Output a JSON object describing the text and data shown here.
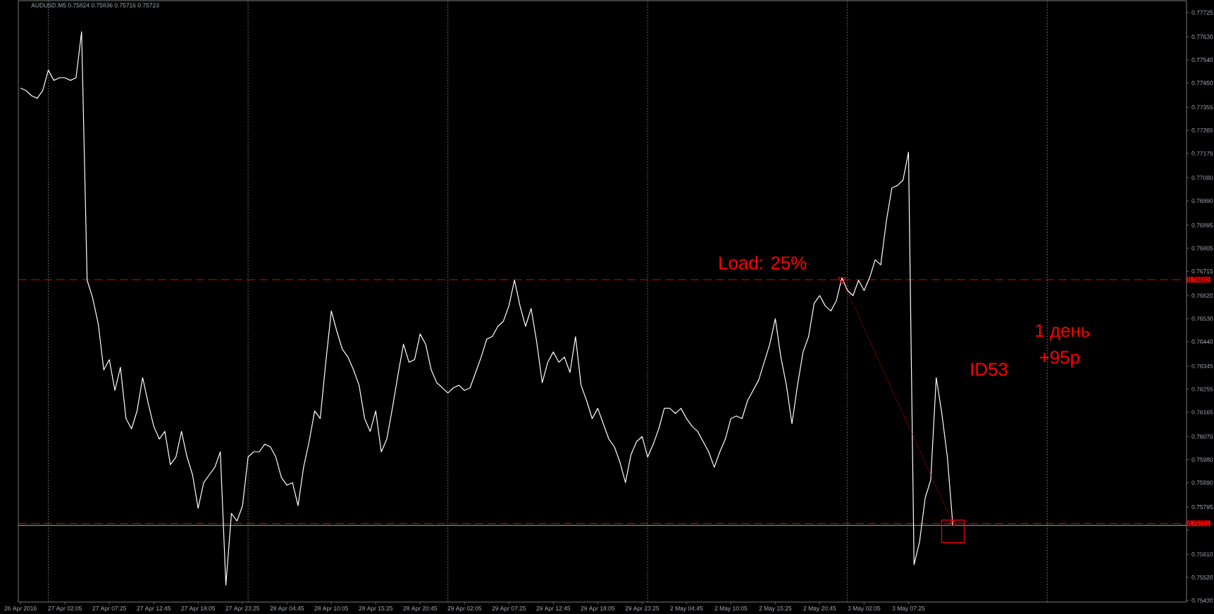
{
  "chart_data": {
    "type": "line",
    "title": "AUDUSD,M5 0.75824 0.75836 0.75716 0.75723",
    "annotations": [
      "Load: 25%",
      "ID53",
      "1 день",
      "+95p"
    ],
    "categories": [
      "26 Apr 2016",
      null,
      null,
      null,
      null,
      null,
      null,
      null,
      "27 Apr 02:05",
      null,
      null,
      null,
      null,
      null,
      null,
      null,
      "27 Apr 07:25",
      null,
      null,
      null,
      null,
      null,
      null,
      null,
      "27 Apr 12:45",
      null,
      null,
      null,
      null,
      null,
      null,
      null,
      "27 Apr 18:05",
      null,
      null,
      null,
      null,
      null,
      null,
      null,
      "27 Apr 23:25",
      null,
      null,
      null,
      null,
      null,
      null,
      null,
      "28 Apr 04:45",
      null,
      null,
      null,
      null,
      null,
      null,
      null,
      "28 Apr 10:05",
      null,
      null,
      null,
      null,
      null,
      null,
      null,
      "28 Apr 15:25",
      null,
      null,
      null,
      null,
      null,
      null,
      null,
      "28 Apr 20:45",
      null,
      null,
      null,
      null,
      null,
      null,
      null,
      "29 Apr 02:05",
      null,
      null,
      null,
      null,
      null,
      null,
      null,
      "29 Apr 07:25",
      null,
      null,
      null,
      null,
      null,
      null,
      null,
      "29 Apr 12:45",
      null,
      null,
      null,
      null,
      null,
      null,
      null,
      "29 Apr 18:05",
      null,
      null,
      null,
      null,
      null,
      null,
      null,
      "29 Apr 23:25",
      null,
      null,
      null,
      null,
      null,
      null,
      null,
      "2 May 04:45",
      null,
      null,
      null,
      null,
      null,
      null,
      null,
      "2 May 10:05",
      null,
      null,
      null,
      null,
      null,
      null,
      null,
      "2 May 15:25",
      null,
      null,
      null,
      null,
      null,
      null,
      null,
      "2 May 20:45",
      null,
      null,
      null,
      null,
      null,
      null,
      null,
      "3 May 02:05",
      null,
      null,
      null,
      null,
      null,
      null,
      null,
      "3 May 07:25",
      null,
      null,
      null,
      null,
      null,
      null,
      null,
      null,
      null,
      null,
      null,
      null,
      null,
      null,
      null,
      null,
      null,
      null,
      null,
      null,
      null,
      null,
      null,
      null,
      null,
      null,
      null,
      null,
      null,
      null,
      null,
      null,
      null,
      null,
      null,
      null,
      null,
      null,
      null,
      null,
      null,
      null,
      null,
      null,
      null,
      null,
      null,
      null,
      null,
      null
    ],
    "ylim": [
      0.75424,
      0.77771
    ],
    "yticks": [
      {
        "value": 0.7543,
        "label": "0.75430"
      },
      {
        "value": 0.7552,
        "label": "0.75520"
      },
      {
        "value": 0.7561,
        "label": "0.75610"
      },
      {
        "value": 0.75705,
        "label": null
      },
      0.75795,
      {
        "value": 0.7589,
        "label": "0.75890"
      },
      {
        "value": 0.7598,
        "label": "0.75980"
      },
      {
        "value": 0.7607,
        "label": "0.76070"
      },
      0.76165,
      0.76255,
      0.76345,
      {
        "value": 0.7644,
        "label": "0.76440"
      },
      {
        "value": 0.7653,
        "label": "0.76530"
      },
      {
        "value": 0.7662,
        "label": "0.76620"
      },
      0.76715,
      0.76805,
      0.76895,
      {
        "value": 0.7699,
        "label": "0.76990"
      },
      {
        "value": 0.7708,
        "label": "0.77080"
      },
      0.77175,
      0.77265,
      0.77355,
      {
        "value": 0.7745,
        "label": "0.77450"
      },
      {
        "value": 0.7754,
        "label": "0.77540"
      },
      {
        "value": 0.7763,
        "label": "0.77630"
      },
      0.77725
    ],
    "series": [
      {
        "color": "#ffffff",
        "values": [
          0.7743,
          0.7742,
          0.774,
          0.7739,
          0.7742,
          0.775,
          0.7746,
          0.7747,
          0.7747,
          0.7746,
          0.7747,
          0.7765,
          0.7668,
          0.7661,
          0.7651,
          0.7633,
          0.7637,
          0.7625,
          0.7634,
          0.7614,
          0.761,
          0.7617,
          0.763,
          0.762,
          0.7611,
          0.7606,
          0.7609,
          0.7596,
          0.7599,
          0.7609,
          0.7599,
          0.7592,
          0.7579,
          0.7589,
          0.7592,
          0.7595,
          0.7601,
          0.7549,
          0.7577,
          0.7574,
          0.758,
          0.7599,
          0.7601,
          0.7601,
          0.7604,
          0.7603,
          0.7599,
          0.7591,
          0.7588,
          0.7589,
          0.758,
          0.7595,
          0.7605,
          0.7617,
          0.7614,
          0.7636,
          0.7656,
          0.7648,
          0.7641,
          0.7638,
          0.7633,
          0.7627,
          0.7614,
          0.7609,
          0.7617,
          0.7601,
          0.7606,
          0.7618,
          0.7631,
          0.7643,
          0.7636,
          0.7637,
          0.7647,
          0.7643,
          0.7633,
          0.7628,
          0.7626,
          0.7624,
          0.7626,
          0.7627,
          0.7625,
          0.7626,
          0.7632,
          0.7638,
          0.7645,
          0.7646,
          0.765,
          0.7652,
          0.7658,
          0.7668,
          0.7658,
          0.765,
          0.7657,
          0.7644,
          0.7628,
          0.7636,
          0.764,
          0.7636,
          0.7638,
          0.7632,
          0.7646,
          0.7627,
          0.7621,
          0.7614,
          0.7618,
          0.7612,
          0.7606,
          0.7603,
          0.7597,
          0.7589,
          0.76,
          0.7605,
          0.7607,
          0.7599,
          0.7604,
          0.761,
          0.7618,
          0.7618,
          0.7616,
          0.7618,
          0.7614,
          0.7611,
          0.7609,
          0.7605,
          0.7601,
          0.7595,
          0.7601,
          0.7606,
          0.7614,
          0.7615,
          0.7614,
          0.7621,
          0.7625,
          0.7629,
          0.7636,
          0.7643,
          0.7653,
          0.7638,
          0.7627,
          0.7612,
          0.7627,
          0.764,
          0.7646,
          0.7659,
          0.7662,
          0.7658,
          0.7656,
          0.766,
          0.7669,
          0.7664,
          0.7662,
          0.7668,
          0.7664,
          0.7669,
          0.7676,
          0.7674,
          0.7691,
          0.7704,
          0.7705,
          0.7707,
          0.7718,
          0.7557,
          0.7566,
          0.7583,
          0.759,
          0.763,
          0.7616,
          0.7599,
          0.7572,
          null,
          null,
          null,
          null,
          null,
          null,
          null,
          null,
          null,
          null,
          null,
          null,
          null,
          null,
          null,
          null,
          null,
          null,
          null,
          null,
          null,
          null,
          null,
          null,
          null,
          null,
          null,
          null,
          null,
          null,
          null,
          null,
          null,
          null,
          null,
          null,
          null,
          null,
          null,
          null,
          null,
          null
        ]
      },
      {
        "type": "line",
        "color": "#ff0000",
        "line_style": "dotted",
        "marker": "triangle",
        "values": [
          null,
          null,
          null,
          null,
          null,
          null,
          null,
          null,
          null,
          null,
          null,
          null,
          null,
          null,
          null,
          null,
          null,
          null,
          null,
          null,
          null,
          null,
          null,
          null,
          null,
          null,
          null,
          null,
          null,
          null,
          null,
          null,
          null,
          null,
          null,
          null,
          null,
          null,
          null,
          null,
          null,
          null,
          null,
          null,
          null,
          null,
          null,
          null,
          null,
          null,
          null,
          null,
          null,
          null,
          null,
          null,
          null,
          null,
          null,
          null,
          null,
          null,
          null,
          null,
          null,
          null,
          null,
          null,
          null,
          null,
          null,
          null,
          null,
          null,
          null,
          null,
          null,
          null,
          null,
          null,
          null,
          null,
          null,
          null,
          null,
          null,
          null,
          null,
          null,
          null,
          null,
          null,
          null,
          null,
          null,
          null,
          null,
          null,
          null,
          null,
          null,
          null,
          null,
          null,
          null,
          null,
          null,
          null,
          null,
          null,
          null,
          null,
          null,
          null,
          null,
          null,
          null,
          null,
          null,
          null,
          null,
          null,
          null,
          null,
          null,
          null,
          null,
          null,
          null,
          null,
          null,
          null,
          null,
          null,
          null,
          null,
          null,
          null,
          null,
          null,
          null,
          null,
          null,
          null,
          null,
          null,
          null,
          null,
          0.76682,
          null,
          null,
          null,
          null,
          null,
          null,
          null,
          null,
          null,
          null,
          null,
          null,
          null,
          null,
          null,
          null,
          null,
          null,
          null,
          0.75731,
          null,
          null,
          null,
          null,
          null,
          null,
          null,
          null,
          null,
          null,
          null,
          null,
          null,
          null,
          null,
          null,
          null,
          null,
          null,
          null,
          null,
          null,
          null,
          null,
          null,
          null,
          null,
          null,
          null,
          null,
          null,
          null,
          null,
          null,
          null,
          null,
          null,
          null,
          null,
          null,
          null,
          null
        ]
      },
      {
        "type": "scatter",
        "color": "#ff0000",
        "marker": "square",
        "values": [
          null,
          null,
          null,
          null,
          null,
          null,
          null,
          null,
          null,
          null,
          null,
          null,
          null,
          null,
          null,
          null,
          null,
          null,
          null,
          null,
          null,
          null,
          null,
          null,
          null,
          null,
          null,
          null,
          null,
          null,
          null,
          null,
          null,
          null,
          null,
          null,
          null,
          null,
          null,
          null,
          null,
          null,
          null,
          null,
          null,
          null,
          null,
          null,
          null,
          null,
          null,
          null,
          null,
          null,
          null,
          null,
          null,
          null,
          null,
          null,
          null,
          null,
          null,
          null,
          null,
          null,
          null,
          null,
          null,
          null,
          null,
          null,
          null,
          null,
          null,
          null,
          null,
          null,
          null,
          null,
          null,
          null,
          null,
          null,
          null,
          null,
          null,
          null,
          null,
          null,
          null,
          null,
          null,
          null,
          null,
          null,
          null,
          null,
          null,
          null,
          null,
          null,
          null,
          null,
          null,
          null,
          null,
          null,
          null,
          null,
          null,
          null,
          null,
          null,
          null,
          null,
          null,
          null,
          null,
          null,
          null,
          null,
          null,
          null,
          null,
          null,
          null,
          null,
          null,
          null,
          null,
          null,
          null,
          null,
          null,
          null,
          null,
          null,
          null,
          null,
          null,
          null,
          null,
          null,
          null,
          null,
          null,
          null,
          null,
          null,
          null,
          null,
          null,
          null,
          null,
          null,
          null,
          null,
          null,
          null,
          null,
          null,
          null,
          null,
          null,
          null,
          null,
          null,
          0.757,
          null,
          null,
          null,
          null,
          null,
          null,
          null,
          null,
          null,
          null,
          null,
          null,
          null,
          null,
          null,
          null,
          null,
          null,
          null,
          null,
          null,
          null,
          null,
          null,
          null,
          null,
          null,
          null,
          null,
          null,
          null,
          null,
          null,
          null,
          null,
          null,
          null,
          null,
          null,
          null,
          null,
          null
        ]
      }
    ],
    "ref_lines": [
      {
        "axis": "y",
        "value": 0.76682,
        "label": "0.76682",
        "color": "#ff0000",
        "line_style": "dashed"
      },
      {
        "axis": "y",
        "value": 0.75723,
        "color": "#c0c0c0",
        "line_style": "solid"
      },
      {
        "axis": "y",
        "value": 0.75731,
        "label": "0.75731",
        "color": "#ff0000",
        "line_style": "dashed"
      }
    ]
  }
}
